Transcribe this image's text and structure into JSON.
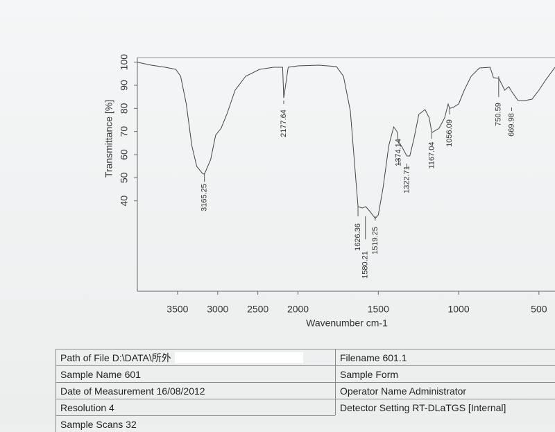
{
  "chart_data": {
    "type": "line",
    "x_label": "Wavenumber cm-1",
    "y_label": "Transmittance [%]",
    "color": "#444",
    "xlim": [
      4000,
      400
    ],
    "x_scale": {
      "break": 2000,
      "factor": 2
    },
    "xticks": [
      3500,
      3000,
      2500,
      2000,
      1500,
      1000,
      500
    ],
    "ylim": [
      0,
      102
    ],
    "yticks": [
      40,
      50,
      60,
      70,
      80,
      90,
      100
    ],
    "x": [
      4000,
      3826,
      3652,
      3522,
      3461,
      3391,
      3322,
      3261,
      3191,
      3165.25,
      3087,
      3026,
      2957,
      2887,
      2783,
      2652,
      2478,
      2304,
      2191,
      2177.64,
      2122,
      2000,
      1870,
      1761,
      1717,
      1674,
      1643,
      1626,
      1600,
      1578,
      1552,
      1519,
      1500,
      1470,
      1435,
      1404,
      1383,
      1374,
      1357,
      1322,
      1304,
      1278,
      1248,
      1209,
      1183,
      1167,
      1122,
      1087,
      1065,
      1056,
      1035,
      1000,
      965,
      922,
      870,
      804,
      783,
      750,
      713,
      687,
      670,
      630,
      587,
      543,
      500,
      457,
      400
    ],
    "values": [
      100,
      98.7,
      97.8,
      96.9,
      93.9,
      81.9,
      63.9,
      54.9,
      51.9,
      51.5,
      57.9,
      68.4,
      71.4,
      77.4,
      87.9,
      93.9,
      96.9,
      97.8,
      97.8,
      84.5,
      97.8,
      98.4,
      98.7,
      98.1,
      93.9,
      78.9,
      51.9,
      37.5,
      36.9,
      37.5,
      35.4,
      32.4,
      33.9,
      45.9,
      63.9,
      72,
      69.9,
      65,
      63.9,
      59.4,
      59.4,
      66.9,
      77.4,
      79.5,
      75.9,
      69.5,
      71.4,
      75.9,
      81.9,
      80,
      80.4,
      81.9,
      87.9,
      93.9,
      97.5,
      97.8,
      93.3,
      93,
      87.9,
      89.4,
      87.3,
      83.4,
      83.4,
      84,
      87.9,
      92.4,
      97.8
    ],
    "peaks": [
      3165.25,
      2177.64,
      1626.36,
      1580.21,
      1519.25,
      1374.14,
      1322.71,
      1167.04,
      1056.09,
      750.59,
      669.98
    ]
  },
  "table": {
    "rows": [
      [
        "Path of File D:\\DATA\\所外",
        "Filename 601.1"
      ],
      [
        "Sample Name 601",
        "Sample Form"
      ],
      [
        "Date of Measurement 16/08/2012",
        "Operator Name Administrator"
      ],
      [
        "Resolution 4",
        "Detector Setting RT-DLaTGS [Internal]"
      ],
      [
        "Sample Scans 32"
      ]
    ]
  }
}
